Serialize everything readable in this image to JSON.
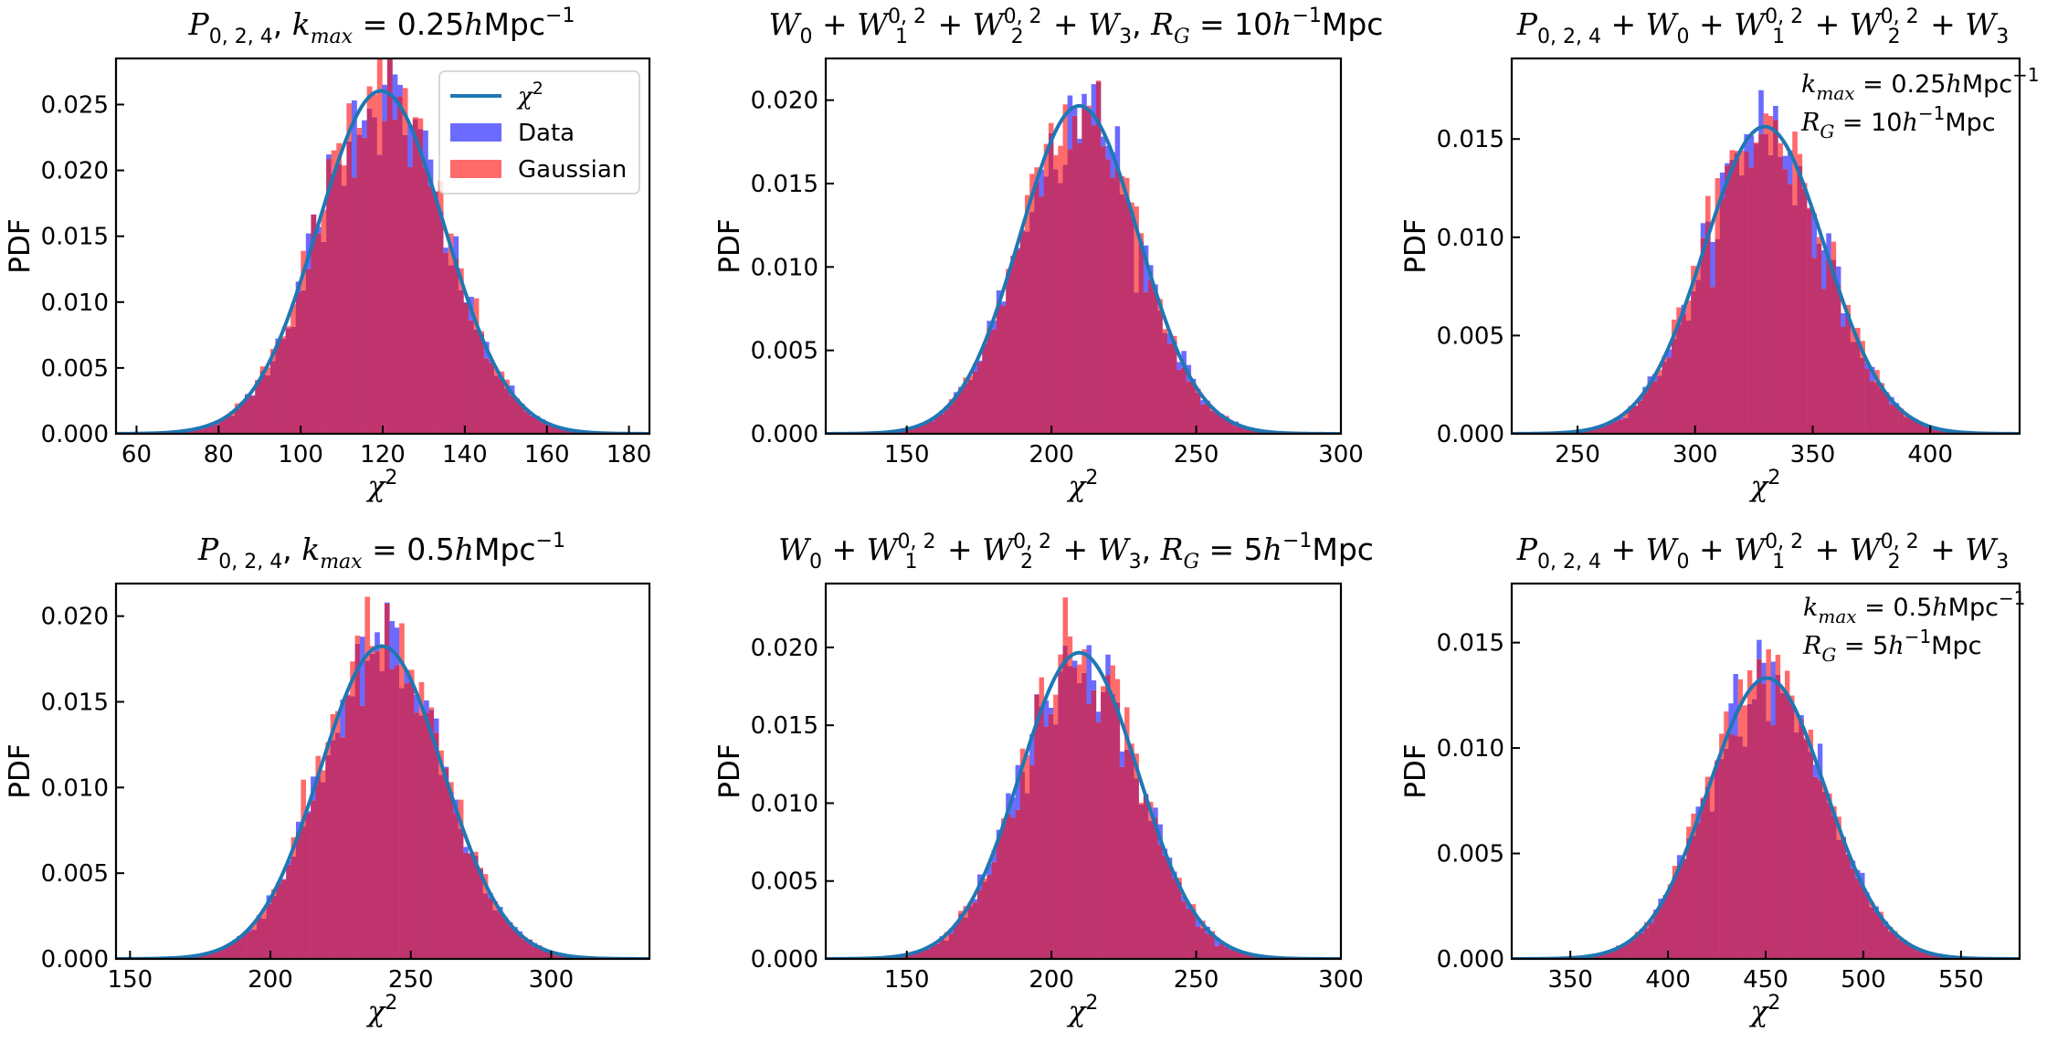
{
  "colors": {
    "curve": "#1f77b4",
    "data": "#6b6bff",
    "gaussian": "#ff6b6b",
    "overlap": "#c0346e"
  },
  "legend": {
    "entries": [
      {
        "label": "χ²",
        "kind": "line"
      },
      {
        "label": "Data",
        "kind": "patch-data"
      },
      {
        "label": "Gaussian",
        "kind": "patch-gaussian"
      }
    ]
  },
  "chart_data": [
    {
      "type": "bar",
      "title": "P_{0,2,4}, k_max = 0.25hMpc^-1",
      "xlabel": "χ²",
      "ylabel": "PDF",
      "xlim": [
        55,
        185
      ],
      "ylim": [
        0,
        0.0285
      ],
      "xticks": [
        60,
        80,
        100,
        120,
        140,
        160,
        180
      ],
      "yticks": [
        0.0,
        0.005,
        0.01,
        0.015,
        0.02,
        0.025
      ],
      "dof": 120,
      "curve_peak": {
        "x": 118,
        "y": 0.0259
      },
      "hist_peak": 0.0272,
      "legend": "upper-right",
      "annotation": []
    },
    {
      "type": "bar",
      "title": "W_0 + W_1^{0,2} + W_2^{0,2} + W_3, R_G = 10h^-1 Mpc",
      "xlabel": "χ²",
      "ylabel": "PDF",
      "xlim": [
        122,
        300
      ],
      "ylim": [
        0,
        0.0225
      ],
      "xticks": [
        150,
        200,
        250,
        300
      ],
      "yticks": [
        0.0,
        0.005,
        0.01,
        0.015,
        0.02
      ],
      "dof": 210,
      "curve_peak": {
        "x": 208,
        "y": 0.0196
      },
      "hist_peak": 0.0215,
      "legend": null,
      "annotation": []
    },
    {
      "type": "bar",
      "title": "P_{0,2,4} + W_0 + W_1^{0,2} + W_2^{0,2} + W_3",
      "xlabel": "χ²",
      "ylabel": "PDF",
      "xlim": [
        222,
        438
      ],
      "ylim": [
        0,
        0.0191
      ],
      "xticks": [
        250,
        300,
        350,
        400
      ],
      "yticks": [
        0.0,
        0.005,
        0.01,
        0.015
      ],
      "dof": 330,
      "curve_peak": {
        "x": 328,
        "y": 0.0156
      },
      "hist_peak": 0.0172,
      "legend": null,
      "annotation": [
        "k_max = 0.25hMpc^-1",
        "R_G = 10h^-1 Mpc"
      ]
    },
    {
      "type": "bar",
      "title": "P_{0,2,4}, k_max = 0.5hMpc^-1",
      "xlabel": "χ²",
      "ylabel": "PDF",
      "xlim": [
        145,
        335
      ],
      "ylim": [
        0,
        0.0219
      ],
      "xticks": [
        150,
        200,
        250,
        300
      ],
      "yticks": [
        0.0,
        0.005,
        0.01,
        0.015,
        0.02
      ],
      "dof": 240,
      "curve_peak": {
        "x": 238,
        "y": 0.0182
      },
      "hist_peak": 0.0208,
      "legend": null,
      "annotation": []
    },
    {
      "type": "bar",
      "title": "W_0 + W_1^{0,2} + W_2^{0,2} + W_3, R_G = 5h^-1 Mpc",
      "xlabel": "χ²",
      "ylabel": "PDF",
      "xlim": [
        122,
        300
      ],
      "ylim": [
        0,
        0.0241
      ],
      "xticks": [
        150,
        200,
        250,
        300
      ],
      "yticks": [
        0.0,
        0.005,
        0.01,
        0.015,
        0.02
      ],
      "dof": 210,
      "curve_peak": {
        "x": 208,
        "y": 0.0196
      },
      "hist_peak": 0.0232,
      "legend": null,
      "annotation": []
    },
    {
      "type": "bar",
      "title": "P_{0,2,4} + W_0 + W_1^{0,2} + W_2^{0,2} + W_3",
      "xlabel": "χ²",
      "ylabel": "PDF",
      "xlim": [
        320,
        580
      ],
      "ylim": [
        0,
        0.0178
      ],
      "xticks": [
        350,
        400,
        450,
        500,
        550
      ],
      "yticks": [
        0.0,
        0.005,
        0.01,
        0.015
      ],
      "dof": 450,
      "curve_peak": {
        "x": 449,
        "y": 0.0133
      },
      "hist_peak": 0.0162,
      "legend": null,
      "annotation": [
        "k_max = 0.5hMpc^-1",
        "R_G = 5h^-1 Mpc"
      ]
    }
  ]
}
